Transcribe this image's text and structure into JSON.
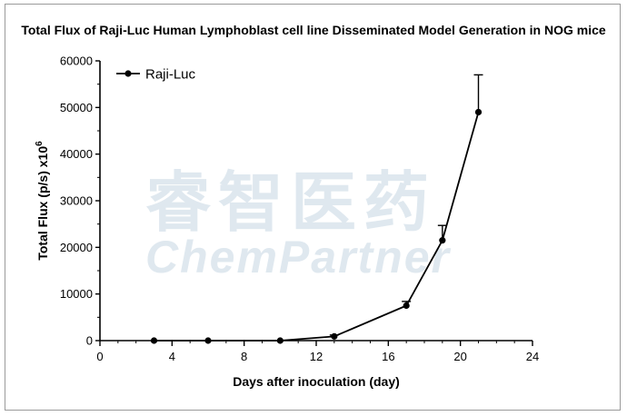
{
  "chart_data": {
    "type": "line",
    "title": "Total Flux of Raji-Luc Human Lymphoblast cell line Disseminated Model Generation in NOG mice",
    "xlabel": "Days after inoculation (day)",
    "ylabel": "Total Flux (p/s) x10",
    "ylabel_exponent": "6",
    "xlim": [
      0,
      24
    ],
    "ylim": [
      0,
      60000
    ],
    "x_ticks": [
      "0",
      "4",
      "8",
      "12",
      "16",
      "20",
      "24"
    ],
    "y_ticks": [
      "0",
      "10000",
      "20000",
      "30000",
      "40000",
      "50000",
      "60000"
    ],
    "legend_position": "top-left",
    "series": [
      {
        "name": "Raji-Luc",
        "color": "#000000",
        "x": [
          3,
          6,
          10,
          13,
          17,
          19,
          21
        ],
        "y": [
          0,
          0,
          0,
          900,
          7500,
          21500,
          49000
        ],
        "error_upper": [
          0,
          0,
          0,
          300,
          900,
          3200,
          8000
        ]
      }
    ]
  },
  "watermark": {
    "chinese": "睿智医药",
    "english": "ChemPartner"
  }
}
